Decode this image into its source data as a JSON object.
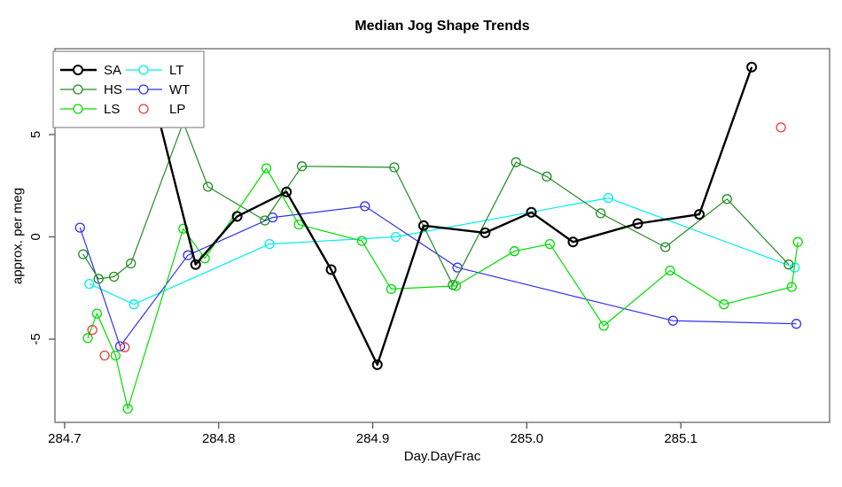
{
  "chart_data": {
    "type": "line",
    "title": "Median Jog Shape Trends",
    "xlabel": "Day.DayFrac",
    "ylabel": "approx. per meg",
    "xlim": [
      284.6937,
      285.1966
    ],
    "ylim": [
      -9.07,
      9.2
    ],
    "grid": false,
    "legend_position": "top-left",
    "x_ticks": {
      "values": [
        284.7,
        284.8,
        284.9,
        285.0,
        285.1
      ],
      "labels": [
        "284.7",
        "284.8",
        "284.9",
        "285.0",
        "285.1"
      ]
    },
    "y_ticks": {
      "values": [
        5,
        0,
        -5
      ],
      "labels": [
        "5",
        "0",
        "-5"
      ]
    },
    "axis_color": "#555555",
    "box_color": "#666666",
    "legend": {
      "border_color": "#999999",
      "columns": [
        [
          "SA",
          "HS",
          "LS"
        ],
        [
          "LT",
          "WT",
          "LP"
        ]
      ]
    },
    "draw_order": [
      "LT",
      "WT",
      "HS",
      "LS",
      "SA",
      "LP"
    ],
    "series": [
      {
        "name": "SA",
        "color": "#000000",
        "line_width": 2.4,
        "marker": "open-circle",
        "marker_stroke": 2.0,
        "points": [
          [
            284.756,
            7.3
          ],
          [
            284.785,
            -1.35
          ],
          [
            284.812,
            1.0
          ],
          [
            284.844,
            2.2
          ],
          [
            284.873,
            -1.6
          ],
          [
            284.903,
            -6.25
          ],
          [
            284.933,
            0.55
          ],
          [
            284.973,
            0.2
          ],
          [
            285.003,
            1.2
          ],
          [
            285.03,
            -0.25
          ],
          [
            285.072,
            0.65
          ],
          [
            285.112,
            1.1
          ],
          [
            285.146,
            8.3
          ]
        ]
      },
      {
        "name": "HS",
        "color": "#228B22",
        "line_width": 1.2,
        "marker": "open-circle",
        "marker_stroke": 1.3,
        "points": [
          [
            284.712,
            -0.85
          ],
          [
            284.722,
            -2.05
          ],
          [
            284.732,
            -1.95
          ],
          [
            284.743,
            -1.3
          ],
          [
            284.777,
            5.6
          ],
          [
            284.793,
            2.45
          ],
          [
            284.83,
            0.8
          ],
          [
            284.854,
            3.45
          ],
          [
            284.914,
            3.4
          ],
          [
            284.952,
            -2.35
          ],
          [
            284.993,
            3.65
          ],
          [
            285.013,
            2.95
          ],
          [
            285.048,
            1.15
          ],
          [
            285.09,
            -0.5
          ],
          [
            285.13,
            1.85
          ],
          [
            285.17,
            -1.35
          ]
        ]
      },
      {
        "name": "LS",
        "color": "#00DD00",
        "line_width": 1.2,
        "marker": "open-circle",
        "marker_stroke": 1.3,
        "points": [
          [
            284.715,
            -4.95
          ],
          [
            284.721,
            -3.75
          ],
          [
            284.733,
            -5.8
          ],
          [
            284.741,
            -8.4
          ],
          [
            284.777,
            0.4
          ],
          [
            284.791,
            -1.05
          ],
          [
            284.831,
            3.35
          ],
          [
            284.852,
            0.6
          ],
          [
            284.893,
            -0.2
          ],
          [
            284.912,
            -2.55
          ],
          [
            284.954,
            -2.4
          ],
          [
            284.992,
            -0.7
          ],
          [
            285.015,
            -0.35
          ],
          [
            285.05,
            -4.35
          ],
          [
            285.093,
            -1.65
          ],
          [
            285.128,
            -3.3
          ],
          [
            285.172,
            -2.45
          ],
          [
            285.176,
            -0.25
          ]
        ]
      },
      {
        "name": "LT",
        "color": "#00EEEE",
        "line_width": 1.2,
        "marker": "open-circle",
        "marker_stroke": 1.3,
        "points": [
          [
            284.716,
            -2.3
          ],
          [
            284.745,
            -3.3
          ],
          [
            284.833,
            -0.35
          ],
          [
            284.915,
            0.0
          ],
          [
            285.053,
            1.9
          ],
          [
            285.174,
            -1.5
          ]
        ]
      },
      {
        "name": "WT",
        "color": "#3333EE",
        "line_width": 1.2,
        "marker": "open-circle",
        "marker_stroke": 1.3,
        "points": [
          [
            284.71,
            0.45
          ],
          [
            284.736,
            -5.35
          ],
          [
            284.78,
            -0.9
          ],
          [
            284.835,
            0.95
          ],
          [
            284.895,
            1.5
          ],
          [
            284.955,
            -1.5
          ],
          [
            285.095,
            -4.1
          ],
          [
            285.175,
            -4.25
          ]
        ]
      },
      {
        "name": "LP",
        "color": "#EE3B3B",
        "line_width": 0,
        "marker": "open-circle",
        "marker_stroke": 1.3,
        "points": [
          [
            284.718,
            -4.55
          ],
          [
            284.726,
            -5.8
          ],
          [
            284.739,
            -5.4
          ],
          [
            285.165,
            5.35
          ]
        ]
      }
    ]
  }
}
